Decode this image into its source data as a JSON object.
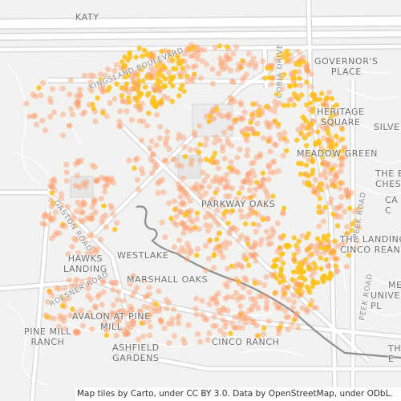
{
  "map": {
    "attribution": "Map tiles by Carto, under CC BY 3.0. Data by OpenStreetMap, under ODbL.",
    "colors": {
      "background": "#f2f2f0",
      "road": "#ffffff",
      "road_casing": "#d6d6d6",
      "water": "#8f8f8f",
      "rail": "#9a9a9a",
      "point": "#ff9c6a",
      "point_hot": "#ffc21a"
    },
    "places": {
      "katy": "KATY",
      "governors_place": "GOVERNOR'S\nPLACE",
      "heritage_square": "HERITAGE\nSQUARE",
      "silver": "SILVE",
      "meadow_green": "MEADOW GREEN",
      "the_e_ches": "THE E\nCHES",
      "ca_c": "CA\nC",
      "parkway_oaks": "PARKWAY OAKS",
      "the_landing_cinco_rean": "THE LANDING\nCINCO REAN",
      "hawks_landing": "HAWKS\nLANDING",
      "westlake": "WESTLAKE",
      "marshall_oaks": "MARSHALL OAKS",
      "me": "ME",
      "unive": "UNIVE\nPL",
      "avalon_at_pine_mill": "AVALON AT PINE\nMILL",
      "pine_mill_ranch": "PINE MILL\nRANCH",
      "cinco_ranch": "CINCO RANCH",
      "ashfield_gardens": "ASHFIELD\nGARDENS",
      "th": "TH\nE"
    },
    "streets": {
      "kingsland_boulevard": "KINGSLAND BOULEVARD",
      "cobia_drive": "COBIA DRIVE",
      "gaston_road": "GASTON ROAD",
      "roesner_road": "ROESNER ROAD",
      "peek_road_north": "PEEK ROAD",
      "peek_road_south": "PEEK ROAD"
    }
  }
}
